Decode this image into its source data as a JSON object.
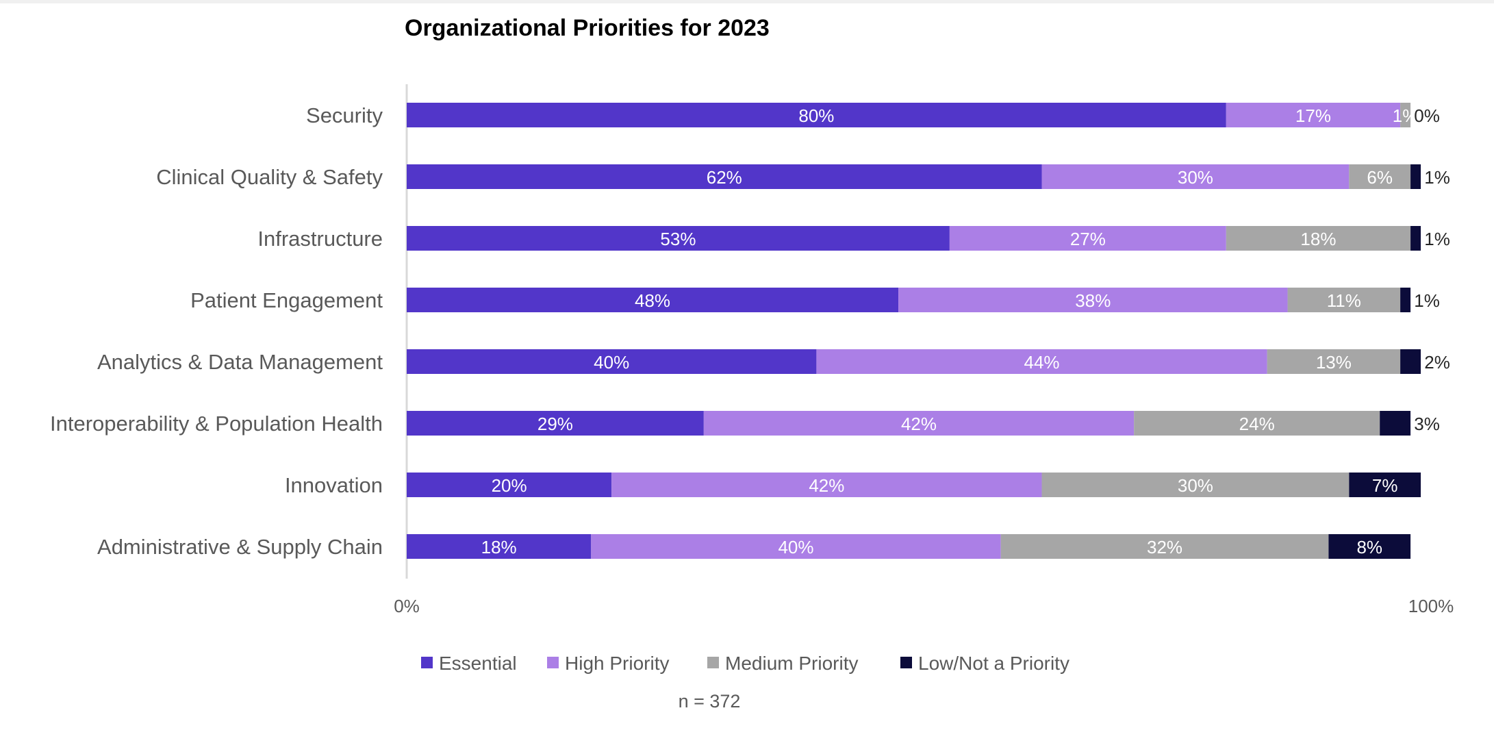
{
  "chart_data": {
    "type": "bar",
    "orientation": "horizontal",
    "stacked": true,
    "title": "Organizational Priorities for 2023",
    "categories": [
      "Security",
      "Clinical Quality & Safety",
      "Infrastructure",
      "Patient Engagement",
      "Analytics & Data Management",
      "Interoperability & Population Health",
      "Innovation",
      "Administrative & Supply Chain"
    ],
    "series": [
      {
        "name": "Essential",
        "color": "#5236c9",
        "values": [
          80,
          62,
          53,
          48,
          40,
          29,
          20,
          18
        ]
      },
      {
        "name": "High Priority",
        "color": "#ab7fe6",
        "values": [
          17,
          30,
          27,
          38,
          44,
          42,
          42,
          40
        ]
      },
      {
        "name": "Medium Priority",
        "color": "#a6a6a6",
        "values": [
          1,
          6,
          18,
          11,
          13,
          24,
          30,
          32
        ]
      },
      {
        "name": "Low/Not a Priority",
        "color": "#0c0c3a",
        "values": [
          0,
          1,
          1,
          1,
          2,
          3,
          7,
          8
        ]
      }
    ],
    "data_labels": [
      [
        "80%",
        "17%",
        "1%",
        "0%"
      ],
      [
        "62%",
        "30%",
        "6%",
        "1%"
      ],
      [
        "53%",
        "27%",
        "18%",
        "1%"
      ],
      [
        "48%",
        "38%",
        "11%",
        "1%"
      ],
      [
        "40%",
        "44%",
        "13%",
        "2%"
      ],
      [
        "29%",
        "42%",
        "24%",
        "3%"
      ],
      [
        "20%",
        "42%",
        "30%",
        "7%"
      ],
      [
        "18%",
        "40%",
        "32%",
        "8%"
      ]
    ],
    "x_ticks": [
      "0%",
      "100%"
    ],
    "xlim": [
      0,
      100
    ],
    "legend_position": "bottom",
    "grid": false,
    "note": "n = 372"
  }
}
